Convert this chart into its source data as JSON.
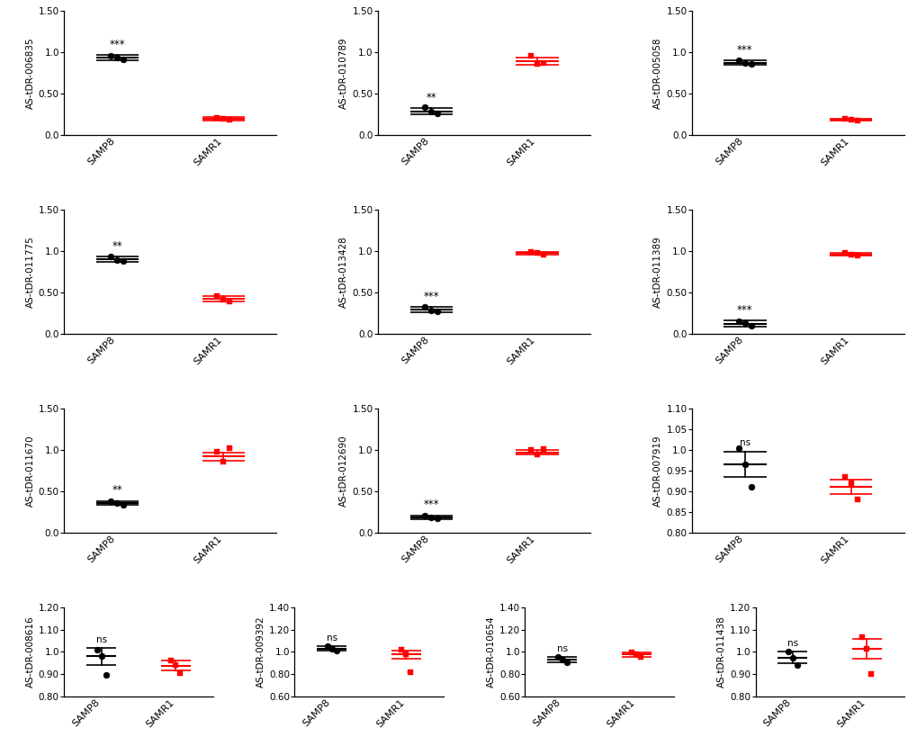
{
  "panels": [
    {
      "title": "AS-tDR-006835",
      "ylim": [
        0.0,
        1.5
      ],
      "yticks": [
        0.0,
        0.5,
        1.0,
        1.5
      ],
      "samp8_mean": 0.935,
      "samp8_sem": 0.03,
      "samp8_pts": [
        0.955,
        0.92,
        0.935
      ],
      "samp8_color": "black",
      "samr1_mean": 0.195,
      "samr1_sem": 0.018,
      "samr1_pts": [
        0.205,
        0.185,
        0.2
      ],
      "samr1_color": "#FF0000",
      "sig": "***",
      "sig_on": 0,
      "row": 0,
      "col": 0
    },
    {
      "title": "AS-tDR-010789",
      "ylim": [
        0.0,
        1.5
      ],
      "yticks": [
        0.0,
        0.5,
        1.0,
        1.5
      ],
      "samp8_mean": 0.285,
      "samp8_sem": 0.038,
      "samp8_pts": [
        0.34,
        0.265,
        0.28
      ],
      "samp8_color": "black",
      "samr1_mean": 0.895,
      "samr1_sem": 0.042,
      "samr1_pts": [
        0.96,
        0.87,
        0.855
      ],
      "samr1_color": "#FF0000",
      "sig": "**",
      "sig_on": 0,
      "row": 0,
      "col": 1
    },
    {
      "title": "AS-tDR-005058",
      "ylim": [
        0.0,
        1.5
      ],
      "yticks": [
        0.0,
        0.5,
        1.0,
        1.5
      ],
      "samp8_mean": 0.875,
      "samp8_sem": 0.028,
      "samp8_pts": [
        0.9,
        0.855,
        0.87
      ],
      "samp8_color": "black",
      "samr1_mean": 0.185,
      "samr1_sem": 0.012,
      "samr1_pts": [
        0.195,
        0.175,
        0.185
      ],
      "samr1_color": "#FF0000",
      "sig": "***",
      "sig_on": 0,
      "row": 0,
      "col": 2
    },
    {
      "title": "AS-tDR-011775",
      "ylim": [
        0.0,
        1.5
      ],
      "yticks": [
        0.0,
        0.5,
        1.0,
        1.5
      ],
      "samp8_mean": 0.9,
      "samp8_sem": 0.03,
      "samp8_pts": [
        0.93,
        0.88,
        0.895
      ],
      "samp8_color": "black",
      "samr1_mean": 0.42,
      "samr1_sem": 0.03,
      "samr1_pts": [
        0.45,
        0.395,
        0.415
      ],
      "samr1_color": "#FF0000",
      "sig": "**",
      "sig_on": 0,
      "row": 1,
      "col": 0
    },
    {
      "title": "AS-tDR-013428",
      "ylim": [
        0.0,
        1.5
      ],
      "yticks": [
        0.0,
        0.5,
        1.0,
        1.5
      ],
      "samp8_mean": 0.29,
      "samp8_sem": 0.03,
      "samp8_pts": [
        0.32,
        0.265,
        0.285
      ],
      "samp8_color": "black",
      "samr1_mean": 0.975,
      "samr1_sem": 0.015,
      "samr1_pts": [
        0.99,
        0.96,
        0.975
      ],
      "samr1_color": "#FF0000",
      "sig": "***",
      "sig_on": 0,
      "row": 1,
      "col": 1
    },
    {
      "title": "AS-tDR-011389",
      "ylim": [
        0.0,
        1.5
      ],
      "yticks": [
        0.0,
        0.5,
        1.0,
        1.5
      ],
      "samp8_mean": 0.12,
      "samp8_sem": 0.04,
      "samp8_pts": [
        0.155,
        0.095,
        0.13
      ],
      "samp8_color": "black",
      "samr1_mean": 0.96,
      "samr1_sem": 0.015,
      "samr1_pts": [
        0.975,
        0.945,
        0.96
      ],
      "samr1_color": "#FF0000",
      "sig": "***",
      "sig_on": 0,
      "row": 1,
      "col": 2
    },
    {
      "title": "AS-tDR-011670",
      "ylim": [
        0.0,
        1.5
      ],
      "yticks": [
        0.0,
        0.5,
        1.0,
        1.5
      ],
      "samp8_mean": 0.355,
      "samp8_sem": 0.025,
      "samp8_pts": [
        0.38,
        0.335,
        0.355
      ],
      "samp8_color": "black",
      "samr1_mean": 0.92,
      "samr1_sem": 0.05,
      "samr1_pts": [
        0.975,
        1.025,
        0.86
      ],
      "samr1_color": "#FF0000",
      "sig": "**",
      "sig_on": 0,
      "row": 2,
      "col": 0
    },
    {
      "title": "AS-tDR-012690",
      "ylim": [
        0.0,
        1.5
      ],
      "yticks": [
        0.0,
        0.5,
        1.0,
        1.5
      ],
      "samp8_mean": 0.185,
      "samp8_sem": 0.02,
      "samp8_pts": [
        0.205,
        0.168,
        0.185
      ],
      "samp8_color": "black",
      "samr1_mean": 0.97,
      "samr1_sem": 0.025,
      "samr1_pts": [
        0.995,
        1.015,
        0.945
      ],
      "samr1_color": "#FF0000",
      "sig": "***",
      "sig_on": 0,
      "row": 2,
      "col": 1
    },
    {
      "title": "AS-tDR-007919",
      "ylim": [
        0.8,
        1.1
      ],
      "yticks": [
        0.8,
        0.85,
        0.9,
        0.95,
        1.0,
        1.05,
        1.1
      ],
      "samp8_mean": 0.965,
      "samp8_sem": 0.03,
      "samp8_pts": [
        1.005,
        0.91,
        0.965
      ],
      "samp8_color": "black",
      "samr1_mean": 0.91,
      "samr1_sem": 0.018,
      "samr1_pts": [
        0.935,
        0.88,
        0.92
      ],
      "samr1_color": "#FF0000",
      "sig": "ns",
      "sig_on": 0,
      "row": 2,
      "col": 2
    },
    {
      "title": "AS-tDR-008616",
      "ylim": [
        0.8,
        1.2
      ],
      "yticks": [
        0.8,
        0.9,
        1.0,
        1.1,
        1.2
      ],
      "samp8_mean": 0.98,
      "samp8_sem": 0.038,
      "samp8_pts": [
        1.01,
        0.895,
        0.98
      ],
      "samp8_color": "black",
      "samr1_mean": 0.938,
      "samr1_sem": 0.022,
      "samr1_pts": [
        0.96,
        0.905,
        0.94
      ],
      "samr1_color": "#FF0000",
      "sig": "ns",
      "sig_on": 0,
      "row": 3,
      "col": 0
    },
    {
      "title": "AS-tDR-009392",
      "ylim": [
        0.6,
        1.4
      ],
      "yticks": [
        0.6,
        0.8,
        1.0,
        1.2,
        1.4
      ],
      "samp8_mean": 1.03,
      "samp8_sem": 0.022,
      "samp8_pts": [
        1.05,
        1.01,
        1.03
      ],
      "samp8_color": "black",
      "samr1_mean": 0.975,
      "samr1_sem": 0.04,
      "samr1_pts": [
        1.02,
        0.82,
        0.975
      ],
      "samr1_color": "#FF0000",
      "sig": "ns",
      "sig_on": 0,
      "row": 3,
      "col": 1
    },
    {
      "title": "AS-tDR-010654",
      "ylim": [
        0.6,
        1.4
      ],
      "yticks": [
        0.6,
        0.8,
        1.0,
        1.2,
        1.4
      ],
      "samp8_mean": 0.93,
      "samp8_sem": 0.025,
      "samp8_pts": [
        0.955,
        0.91,
        0.93
      ],
      "samp8_color": "black",
      "samr1_mean": 0.975,
      "samr1_sem": 0.02,
      "samr1_pts": [
        0.995,
        0.955,
        0.975
      ],
      "samr1_color": "#FF0000",
      "sig": "ns",
      "sig_on": 0,
      "row": 3,
      "col": 2
    },
    {
      "title": "AS-tDR-011438",
      "ylim": [
        0.8,
        1.2
      ],
      "yticks": [
        0.8,
        0.9,
        1.0,
        1.1,
        1.2
      ],
      "samp8_mean": 0.975,
      "samp8_sem": 0.025,
      "samp8_pts": [
        1.0,
        0.94,
        0.975
      ],
      "samp8_color": "black",
      "samr1_mean": 1.015,
      "samr1_sem": 0.045,
      "samr1_pts": [
        1.065,
        0.9,
        1.015
      ],
      "samr1_color": "#FF0000",
      "sig": "ns",
      "sig_on": 0,
      "row": 3,
      "col": 3
    }
  ]
}
